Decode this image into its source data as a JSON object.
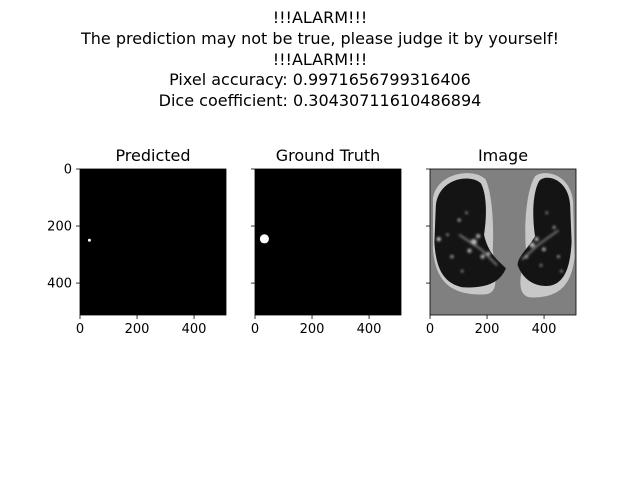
{
  "figure": {
    "title_lines": [
      "!!!ALARM!!!",
      "The prediction may not be true, please judge it by yourself!",
      "!!!ALARM!!!",
      "Pixel accuracy: 0.9971656799316406",
      "Dice coefficient: 0.30430711610486894"
    ]
  },
  "chart_data": [
    {
      "type": "heatmap",
      "title": "Predicted",
      "xlim": [
        0,
        512
      ],
      "ylim": [
        512,
        0
      ],
      "xticks": [
        0,
        200,
        400
      ],
      "yticks": [
        0,
        200,
        400
      ],
      "background": "#000000",
      "blobs": [
        {
          "x": 33,
          "y": 250,
          "r": 5,
          "color": "#ffffff"
        }
      ]
    },
    {
      "type": "heatmap",
      "title": "Ground Truth",
      "xlim": [
        0,
        512
      ],
      "ylim": [
        512,
        0
      ],
      "xticks": [
        0,
        200,
        400
      ],
      "yticks": [
        0,
        200,
        400
      ],
      "background": "#000000",
      "blobs": [
        {
          "x": 33,
          "y": 245,
          "r": 16,
          "color": "#ffffff"
        }
      ]
    },
    {
      "type": "heatmap",
      "title": "Image",
      "xlim": [
        0,
        512
      ],
      "ylim": [
        512,
        0
      ],
      "xticks": [
        0,
        200,
        400
      ],
      "yticks": [
        0,
        200,
        400
      ],
      "background": "#808080",
      "content": "grayscale CT lung slice"
    }
  ]
}
